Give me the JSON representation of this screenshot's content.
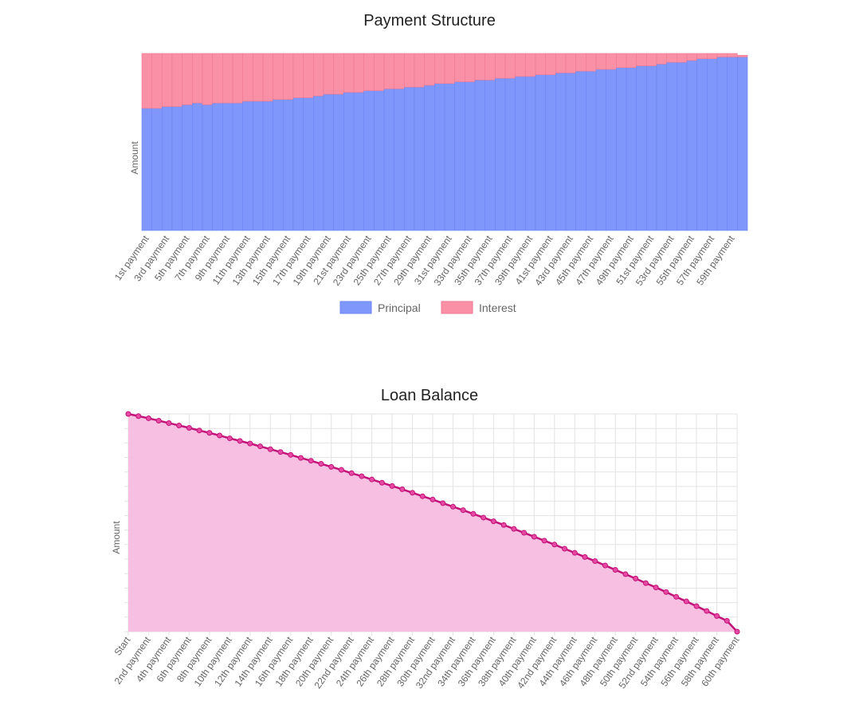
{
  "colors": {
    "principal_fill": "#7f97fb",
    "principal_stroke": "#6c85f0",
    "interest_fill": "#f990a6",
    "interest_stroke": "#ee7a93",
    "balance_fill": "#f7bde0",
    "balance_line": "#c2127a",
    "balance_point": "#e74aa2",
    "grid": "#e3e3e3",
    "axis_text": "#666666",
    "title_text": "#222222"
  },
  "chart_data": [
    {
      "type": "bar",
      "stacked": true,
      "title": "Payment Structure",
      "xlabel": "",
      "ylabel": "Amount",
      "ylim": [
        0,
        100
      ],
      "y_ticks_visible": false,
      "grid": false,
      "legend_position": "bottom",
      "legend": [
        "Principal",
        "Interest"
      ],
      "categories": [
        "1st payment",
        "2nd payment",
        "3rd payment",
        "4th payment",
        "5th payment",
        "6th payment",
        "7th payment",
        "8th payment",
        "9th payment",
        "10th payment",
        "11th payment",
        "12th payment",
        "13th payment",
        "14th payment",
        "15th payment",
        "16th payment",
        "17th payment",
        "18th payment",
        "19th payment",
        "20th payment",
        "21st payment",
        "22nd payment",
        "23rd payment",
        "24th payment",
        "25th payment",
        "26th payment",
        "27th payment",
        "28th payment",
        "29th payment",
        "30th payment",
        "31st payment",
        "32nd payment",
        "33rd payment",
        "34th payment",
        "35th payment",
        "36th payment",
        "37th payment",
        "38th payment",
        "39th payment",
        "40th payment",
        "41st payment",
        "42nd payment",
        "43rd payment",
        "44th payment",
        "45th payment",
        "46th payment",
        "47th payment",
        "48th payment",
        "49th payment",
        "50th payment",
        "51st payment",
        "52nd payment",
        "53rd payment",
        "54th payment",
        "55th payment",
        "56th payment",
        "57th payment",
        "58th payment",
        "59th payment",
        "60th payment"
      ],
      "visible_tick_labels": [
        "1st payment",
        "3rd payment",
        "5th payment",
        "7th payment",
        "9th payment",
        "11th payment",
        "13th payment",
        "15th payment",
        "17th payment",
        "19th payment",
        "21st payment",
        "23rd payment",
        "25th payment",
        "27th payment",
        "29th payment",
        "31st payment",
        "33rd payment",
        "35th payment",
        "37th payment",
        "39th payment",
        "41st payment",
        "43rd payment",
        "45th payment",
        "47th payment",
        "49th payment",
        "51st payment",
        "53rd payment",
        "55th payment",
        "57th payment",
        "59th payment"
      ],
      "series": [
        {
          "name": "Principal",
          "values": [
            69,
            69,
            70,
            70,
            71,
            72,
            71,
            72,
            72,
            72,
            73,
            73,
            73,
            74,
            74,
            75,
            75,
            76,
            77,
            77,
            78,
            78,
            79,
            79,
            80,
            80,
            81,
            81,
            82,
            83,
            83,
            84,
            84,
            85,
            85,
            86,
            86,
            87,
            87,
            88,
            88,
            89,
            89,
            90,
            90,
            91,
            91,
            92,
            92,
            93,
            93,
            94,
            95,
            95,
            96,
            97,
            97,
            98,
            98,
            98
          ]
        },
        {
          "name": "Interest",
          "values": [
            31,
            31,
            30,
            30,
            29,
            28,
            29,
            28,
            28,
            28,
            27,
            27,
            27,
            26,
            26,
            25,
            25,
            24,
            23,
            23,
            22,
            22,
            21,
            21,
            20,
            20,
            19,
            19,
            18,
            17,
            17,
            16,
            16,
            15,
            15,
            14,
            14,
            13,
            13,
            12,
            12,
            11,
            11,
            10,
            10,
            9,
            9,
            8,
            8,
            7,
            7,
            6,
            5,
            5,
            4,
            3,
            3,
            2,
            2,
            1
          ]
        }
      ]
    },
    {
      "type": "area",
      "title": "Loan Balance",
      "xlabel": "",
      "ylabel": "Amount",
      "ylim": [
        0,
        100
      ],
      "y_ticks_visible": false,
      "grid": true,
      "legend_position": "none",
      "x": [
        "Start",
        "1st payment",
        "2nd payment",
        "3rd payment",
        "4th payment",
        "5th payment",
        "6th payment",
        "7th payment",
        "8th payment",
        "9th payment",
        "10th payment",
        "11th payment",
        "12th payment",
        "13th payment",
        "14th payment",
        "15th payment",
        "16th payment",
        "17th payment",
        "18th payment",
        "19th payment",
        "20th payment",
        "21st payment",
        "22nd payment",
        "23rd payment",
        "24th payment",
        "25th payment",
        "26th payment",
        "27th payment",
        "28th payment",
        "29th payment",
        "30th payment",
        "31st payment",
        "32nd payment",
        "33rd payment",
        "34th payment",
        "35th payment",
        "36th payment",
        "37th payment",
        "38th payment",
        "39th payment",
        "40th payment",
        "41st payment",
        "42nd payment",
        "43rd payment",
        "44th payment",
        "45th payment",
        "46th payment",
        "47th payment",
        "48th payment",
        "49th payment",
        "50th payment",
        "51st payment",
        "52nd payment",
        "53rd payment",
        "54th payment",
        "55th payment",
        "56th payment",
        "57th payment",
        "58th payment",
        "59th payment",
        "60th payment"
      ],
      "visible_tick_labels": [
        "Start",
        "2nd payment",
        "4th payment",
        "6th payment",
        "8th payment",
        "10th payment",
        "12th payment",
        "14th payment",
        "16th payment",
        "18th payment",
        "20th payment",
        "22nd payment",
        "24th payment",
        "26th payment",
        "28th payment",
        "30th payment",
        "32nd payment",
        "34th payment",
        "36th payment",
        "38th payment",
        "40th payment",
        "42nd payment",
        "44th payment",
        "46th payment",
        "48th payment",
        "50th payment",
        "52nd payment",
        "54th payment",
        "56th payment",
        "58th payment",
        "60th payment"
      ],
      "series": [
        {
          "name": "Balance",
          "values": [
            100,
            99.0,
            98.0,
            96.9,
            95.8,
            94.7,
            93.6,
            92.4,
            91.3,
            90.1,
            88.8,
            87.6,
            86.4,
            85.1,
            83.8,
            82.5,
            81.2,
            79.8,
            78.5,
            77.1,
            75.7,
            74.3,
            72.8,
            71.4,
            69.9,
            68.4,
            66.9,
            65.4,
            63.8,
            62.2,
            60.7,
            59.0,
            57.4,
            55.8,
            54.1,
            52.4,
            50.7,
            49.0,
            47.2,
            45.4,
            43.6,
            41.8,
            40.0,
            38.1,
            36.2,
            34.3,
            32.4,
            30.4,
            28.4,
            26.4,
            24.4,
            22.3,
            20.3,
            18.2,
            16.0,
            13.9,
            11.7,
            9.5,
            7.2,
            5.0,
            0
          ]
        }
      ]
    }
  ]
}
